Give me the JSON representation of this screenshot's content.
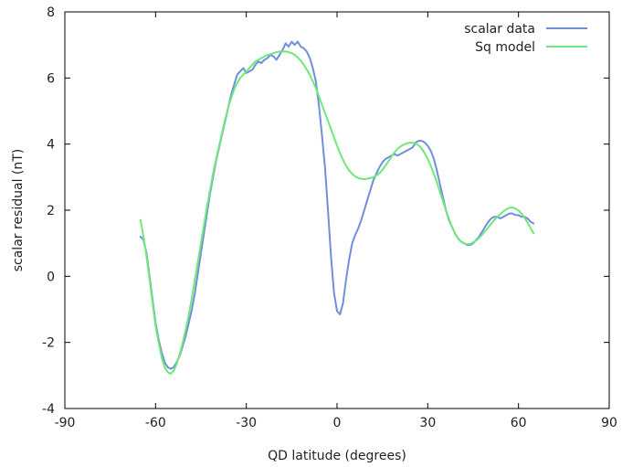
{
  "chart_data": {
    "type": "line",
    "title": "",
    "xlabel": "QD latitude (degrees)",
    "ylabel": "scalar residual (nT)",
    "xlim": [
      -90,
      90
    ],
    "ylim": [
      -4,
      8
    ],
    "xticks": [
      -90,
      -60,
      -30,
      0,
      30,
      60,
      90
    ],
    "yticks": [
      -4,
      -2,
      0,
      2,
      4,
      6,
      8
    ],
    "grid": false,
    "legend_position": "top-right",
    "series": [
      {
        "name": "scalar data",
        "color": "#6f8fdc",
        "points": [
          [
            -65,
            1.2
          ],
          [
            -64,
            1.1
          ],
          [
            -63,
            0.7
          ],
          [
            -62,
            0.0
          ],
          [
            -61,
            -0.7
          ],
          [
            -60,
            -1.4
          ],
          [
            -59,
            -1.9
          ],
          [
            -58,
            -2.3
          ],
          [
            -57,
            -2.6
          ],
          [
            -56,
            -2.75
          ],
          [
            -55,
            -2.8
          ],
          [
            -54,
            -2.75
          ],
          [
            -53,
            -2.6
          ],
          [
            -52,
            -2.4
          ],
          [
            -51,
            -2.1
          ],
          [
            -50,
            -1.8
          ],
          [
            -49,
            -1.4
          ],
          [
            -48,
            -1.0
          ],
          [
            -47,
            -0.5
          ],
          [
            -46,
            0.1
          ],
          [
            -45,
            0.7
          ],
          [
            -44,
            1.3
          ],
          [
            -43,
            1.9
          ],
          [
            -42,
            2.5
          ],
          [
            -41,
            3.0
          ],
          [
            -40,
            3.5
          ],
          [
            -39,
            3.9
          ],
          [
            -38,
            4.3
          ],
          [
            -37,
            4.7
          ],
          [
            -36,
            5.1
          ],
          [
            -35,
            5.5
          ],
          [
            -34,
            5.8
          ],
          [
            -33,
            6.1
          ],
          [
            -32,
            6.2
          ],
          [
            -31,
            6.3
          ],
          [
            -30,
            6.15
          ],
          [
            -29,
            6.2
          ],
          [
            -28,
            6.25
          ],
          [
            -27,
            6.4
          ],
          [
            -26,
            6.5
          ],
          [
            -25,
            6.45
          ],
          [
            -24,
            6.55
          ],
          [
            -23,
            6.6
          ],
          [
            -22,
            6.7
          ],
          [
            -21,
            6.65
          ],
          [
            -20,
            6.55
          ],
          [
            -19,
            6.7
          ],
          [
            -18,
            6.85
          ],
          [
            -17,
            7.05
          ],
          [
            -16,
            6.95
          ],
          [
            -15,
            7.1
          ],
          [
            -14,
            7.0
          ],
          [
            -13,
            7.1
          ],
          [
            -12,
            6.95
          ],
          [
            -11,
            6.9
          ],
          [
            -10,
            6.8
          ],
          [
            -9,
            6.6
          ],
          [
            -8,
            6.3
          ],
          [
            -7,
            5.9
          ],
          [
            -6,
            5.2
          ],
          [
            -5,
            4.3
          ],
          [
            -4,
            3.3
          ],
          [
            -3,
            2.0
          ],
          [
            -2,
            0.6
          ],
          [
            -1,
            -0.5
          ],
          [
            0,
            -1.05
          ],
          [
            1,
            -1.15
          ],
          [
            2,
            -0.8
          ],
          [
            3,
            -0.1
          ],
          [
            4,
            0.5
          ],
          [
            5,
            1.0
          ],
          [
            6,
            1.25
          ],
          [
            7,
            1.45
          ],
          [
            8,
            1.7
          ],
          [
            9,
            2.0
          ],
          [
            10,
            2.3
          ],
          [
            11,
            2.6
          ],
          [
            12,
            2.9
          ],
          [
            13,
            3.1
          ],
          [
            14,
            3.3
          ],
          [
            15,
            3.45
          ],
          [
            16,
            3.55
          ],
          [
            17,
            3.6
          ],
          [
            18,
            3.65
          ],
          [
            19,
            3.7
          ],
          [
            20,
            3.65
          ],
          [
            21,
            3.7
          ],
          [
            22,
            3.75
          ],
          [
            23,
            3.8
          ],
          [
            24,
            3.85
          ],
          [
            25,
            3.9
          ],
          [
            26,
            4.05
          ],
          [
            27,
            4.1
          ],
          [
            28,
            4.1
          ],
          [
            29,
            4.05
          ],
          [
            30,
            3.95
          ],
          [
            31,
            3.8
          ],
          [
            32,
            3.55
          ],
          [
            33,
            3.2
          ],
          [
            34,
            2.8
          ],
          [
            35,
            2.4
          ],
          [
            36,
            2.0
          ],
          [
            37,
            1.7
          ],
          [
            38,
            1.5
          ],
          [
            39,
            1.3
          ],
          [
            40,
            1.15
          ],
          [
            41,
            1.05
          ],
          [
            42,
            1.0
          ],
          [
            43,
            0.95
          ],
          [
            44,
            0.95
          ],
          [
            45,
            1.0
          ],
          [
            46,
            1.1
          ],
          [
            47,
            1.2
          ],
          [
            48,
            1.35
          ],
          [
            49,
            1.5
          ],
          [
            50,
            1.65
          ],
          [
            51,
            1.75
          ],
          [
            52,
            1.8
          ],
          [
            53,
            1.8
          ],
          [
            54,
            1.75
          ],
          [
            55,
            1.8
          ],
          [
            56,
            1.85
          ],
          [
            57,
            1.9
          ],
          [
            58,
            1.9
          ],
          [
            59,
            1.85
          ],
          [
            60,
            1.85
          ],
          [
            61,
            1.8
          ],
          [
            62,
            1.8
          ],
          [
            63,
            1.75
          ],
          [
            64,
            1.65
          ],
          [
            65,
            1.6
          ]
        ]
      },
      {
        "name": "Sq model",
        "color": "#6ee87a",
        "points": [
          [
            -65,
            1.7
          ],
          [
            -64,
            1.2
          ],
          [
            -63,
            0.6
          ],
          [
            -62,
            -0.1
          ],
          [
            -61,
            -0.8
          ],
          [
            -60,
            -1.5
          ],
          [
            -59,
            -2.0
          ],
          [
            -58,
            -2.45
          ],
          [
            -57,
            -2.75
          ],
          [
            -56,
            -2.9
          ],
          [
            -55,
            -2.95
          ],
          [
            -54,
            -2.85
          ],
          [
            -53,
            -2.65
          ],
          [
            -52,
            -2.35
          ],
          [
            -51,
            -2.0
          ],
          [
            -50,
            -1.6
          ],
          [
            -49,
            -1.15
          ],
          [
            -48,
            -0.65
          ],
          [
            -47,
            -0.1
          ],
          [
            -46,
            0.45
          ],
          [
            -45,
            1.0
          ],
          [
            -44,
            1.55
          ],
          [
            -43,
            2.1
          ],
          [
            -42,
            2.6
          ],
          [
            -41,
            3.1
          ],
          [
            -40,
            3.55
          ],
          [
            -39,
            3.95
          ],
          [
            -38,
            4.35
          ],
          [
            -37,
            4.75
          ],
          [
            -36,
            5.1
          ],
          [
            -35,
            5.4
          ],
          [
            -34,
            5.65
          ],
          [
            -33,
            5.85
          ],
          [
            -32,
            6.0
          ],
          [
            -31,
            6.1
          ],
          [
            -30,
            6.2
          ],
          [
            -29,
            6.3
          ],
          [
            -28,
            6.4
          ],
          [
            -27,
            6.5
          ],
          [
            -26,
            6.55
          ],
          [
            -25,
            6.6
          ],
          [
            -24,
            6.65
          ],
          [
            -23,
            6.7
          ],
          [
            -22,
            6.72
          ],
          [
            -21,
            6.75
          ],
          [
            -20,
            6.78
          ],
          [
            -19,
            6.8
          ],
          [
            -18,
            6.8
          ],
          [
            -17,
            6.8
          ],
          [
            -16,
            6.78
          ],
          [
            -15,
            6.75
          ],
          [
            -14,
            6.7
          ],
          [
            -13,
            6.62
          ],
          [
            -12,
            6.52
          ],
          [
            -11,
            6.4
          ],
          [
            -10,
            6.25
          ],
          [
            -9,
            6.1
          ],
          [
            -8,
            5.9
          ],
          [
            -7,
            5.7
          ],
          [
            -6,
            5.45
          ],
          [
            -5,
            5.2
          ],
          [
            -4,
            4.95
          ],
          [
            -3,
            4.7
          ],
          [
            -2,
            4.45
          ],
          [
            -1,
            4.2
          ],
          [
            0,
            3.95
          ],
          [
            1,
            3.72
          ],
          [
            2,
            3.52
          ],
          [
            3,
            3.35
          ],
          [
            4,
            3.2
          ],
          [
            5,
            3.1
          ],
          [
            6,
            3.02
          ],
          [
            7,
            2.97
          ],
          [
            8,
            2.95
          ],
          [
            9,
            2.94
          ],
          [
            10,
            2.95
          ],
          [
            11,
            2.97
          ],
          [
            12,
            3.0
          ],
          [
            13,
            3.05
          ],
          [
            14,
            3.12
          ],
          [
            15,
            3.22
          ],
          [
            16,
            3.34
          ],
          [
            17,
            3.48
          ],
          [
            18,
            3.62
          ],
          [
            19,
            3.75
          ],
          [
            20,
            3.85
          ],
          [
            21,
            3.93
          ],
          [
            22,
            3.98
          ],
          [
            23,
            4.02
          ],
          [
            24,
            4.04
          ],
          [
            25,
            4.04
          ],
          [
            26,
            4.02
          ],
          [
            27,
            3.96
          ],
          [
            28,
            3.86
          ],
          [
            29,
            3.72
          ],
          [
            30,
            3.55
          ],
          [
            31,
            3.34
          ],
          [
            32,
            3.1
          ],
          [
            33,
            2.84
          ],
          [
            34,
            2.56
          ],
          [
            35,
            2.28
          ],
          [
            36,
            2.0
          ],
          [
            37,
            1.74
          ],
          [
            38,
            1.5
          ],
          [
            39,
            1.3
          ],
          [
            40,
            1.15
          ],
          [
            41,
            1.05
          ],
          [
            42,
            0.99
          ],
          [
            43,
            0.97
          ],
          [
            44,
            0.98
          ],
          [
            45,
            1.02
          ],
          [
            46,
            1.08
          ],
          [
            47,
            1.16
          ],
          [
            48,
            1.26
          ],
          [
            49,
            1.37
          ],
          [
            50,
            1.48
          ],
          [
            51,
            1.59
          ],
          [
            52,
            1.7
          ],
          [
            53,
            1.8
          ],
          [
            54,
            1.88
          ],
          [
            55,
            1.96
          ],
          [
            56,
            2.03
          ],
          [
            57,
            2.07
          ],
          [
            58,
            2.08
          ],
          [
            59,
            2.05
          ],
          [
            60,
            1.99
          ],
          [
            61,
            1.9
          ],
          [
            62,
            1.77
          ],
          [
            63,
            1.62
          ],
          [
            64,
            1.46
          ],
          [
            65,
            1.3
          ]
        ]
      }
    ]
  }
}
